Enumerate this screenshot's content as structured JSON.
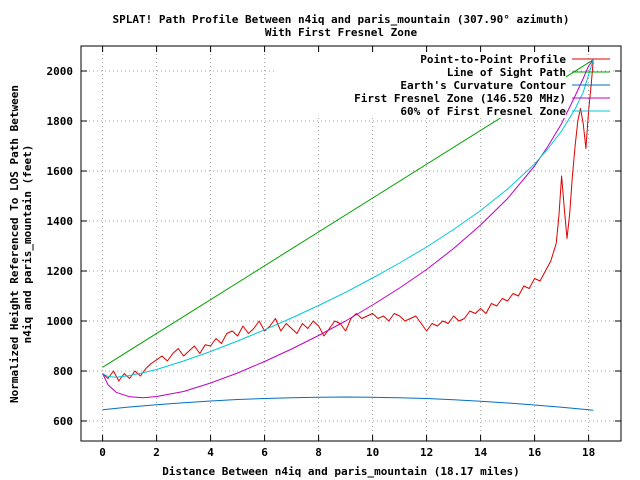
{
  "chart_data": {
    "type": "line",
    "title": "SPLAT! Path Profile Between n4iq and paris_mountain (307.90° azimuth)",
    "subtitle": "With First Fresnel Zone",
    "xlabel": "Distance Between n4iq and paris_mountain (18.17 miles)",
    "ylabel_line1": "Normalized Height Referenced To LOS Path Between",
    "ylabel_line2": "n4iq and paris_mountain (feet)",
    "xlim": [
      -0.8,
      19.2
    ],
    "ylim": [
      520,
      2100
    ],
    "xticks": [
      0,
      2,
      4,
      6,
      8,
      10,
      12,
      14,
      16,
      18
    ],
    "yticks": [
      600,
      800,
      1000,
      1200,
      1400,
      1600,
      1800,
      2000
    ],
    "grid": true,
    "legend_position": "top-right",
    "series": [
      {
        "name": "Point-to-Point Profile",
        "color": "#dd0000",
        "x": [
          0,
          0.2,
          0.4,
          0.6,
          0.8,
          1.0,
          1.2,
          1.4,
          1.6,
          1.8,
          2.0,
          2.2,
          2.4,
          2.6,
          2.8,
          3.0,
          3.2,
          3.4,
          3.6,
          3.8,
          4.0,
          4.2,
          4.4,
          4.6,
          4.8,
          5.0,
          5.2,
          5.4,
          5.6,
          5.8,
          6.0,
          6.2,
          6.4,
          6.6,
          6.8,
          7.0,
          7.2,
          7.4,
          7.6,
          7.8,
          8.0,
          8.2,
          8.4,
          8.6,
          8.8,
          9.0,
          9.2,
          9.4,
          9.6,
          9.8,
          10.0,
          10.2,
          10.4,
          10.6,
          10.8,
          11.0,
          11.2,
          11.4,
          11.6,
          11.8,
          12.0,
          12.2,
          12.4,
          12.6,
          12.8,
          13.0,
          13.2,
          13.4,
          13.6,
          13.8,
          14.0,
          14.2,
          14.4,
          14.6,
          14.8,
          15.0,
          15.2,
          15.4,
          15.6,
          15.8,
          16.0,
          16.2,
          16.4,
          16.6,
          16.8,
          16.9,
          17.0,
          17.1,
          17.2,
          17.3,
          17.4,
          17.5,
          17.6,
          17.7,
          17.8,
          17.9,
          18.0,
          18.1,
          18.17
        ],
        "y": [
          790,
          770,
          800,
          760,
          790,
          770,
          800,
          780,
          810,
          830,
          845,
          860,
          840,
          870,
          890,
          860,
          880,
          900,
          870,
          905,
          900,
          930,
          910,
          950,
          960,
          940,
          980,
          950,
          970,
          1000,
          960,
          980,
          1010,
          960,
          990,
          970,
          950,
          990,
          970,
          1000,
          980,
          940,
          970,
          1000,
          990,
          960,
          1010,
          1030,
          1010,
          1020,
          1030,
          1010,
          1020,
          1000,
          1030,
          1020,
          1000,
          1010,
          1020,
          990,
          960,
          990,
          980,
          1000,
          990,
          1020,
          1000,
          1010,
          1040,
          1030,
          1050,
          1030,
          1070,
          1060,
          1090,
          1080,
          1110,
          1100,
          1140,
          1130,
          1170,
          1160,
          1200,
          1240,
          1310,
          1420,
          1580,
          1450,
          1330,
          1430,
          1580,
          1700,
          1800,
          1850,
          1790,
          1690,
          1840,
          1950,
          2040
        ]
      },
      {
        "name": "Line of Sight Path",
        "color": "#00a000",
        "x": [
          0,
          18.17
        ],
        "y": [
          815,
          2045
        ]
      },
      {
        "name": "Earth's Curvature Contour",
        "color": "#0070c0",
        "x": [
          0,
          1,
          2,
          3,
          4,
          5,
          6,
          7,
          8,
          9,
          10,
          11,
          12,
          13,
          14,
          15,
          16,
          17,
          18,
          18.17
        ],
        "y": [
          645,
          656,
          665,
          673,
          680,
          686,
          690,
          693,
          695,
          696,
          695,
          693,
          690,
          685,
          679,
          672,
          664,
          655,
          645,
          643
        ]
      },
      {
        "name": "First Fresnel Zone (146.520 MHz)",
        "color": "#c000c0",
        "x": [
          0,
          0.2,
          0.5,
          1,
          1.5,
          2,
          3,
          4,
          5,
          6,
          7,
          8,
          9,
          10,
          11,
          12,
          13,
          14,
          15,
          16,
          16.5,
          17,
          17.5,
          17.8,
          18,
          18.17
        ],
        "y": [
          790,
          745,
          715,
          697,
          693,
          698,
          718,
          752,
          792,
          838,
          888,
          942,
          1000,
          1064,
          1132,
          1206,
          1290,
          1384,
          1490,
          1620,
          1700,
          1790,
          1900,
          1970,
          2020,
          2045
        ]
      },
      {
        "name": "60% of First Fresnel Zone",
        "color": "#00c8d8",
        "x": [
          0,
          0.2,
          0.5,
          1,
          1.5,
          2,
          3,
          4,
          5,
          6,
          7,
          8,
          9,
          10,
          11,
          12,
          13,
          14,
          15,
          16,
          16.5,
          17,
          17.5,
          17.8,
          18,
          18.17
        ],
        "y": [
          790,
          778,
          775,
          782,
          793,
          806,
          840,
          878,
          920,
          965,
          1012,
          1062,
          1115,
          1172,
          1232,
          1296,
          1366,
          1442,
          1528,
          1628,
          1690,
          1760,
          1848,
          1915,
          1985,
          2045
        ]
      }
    ]
  }
}
